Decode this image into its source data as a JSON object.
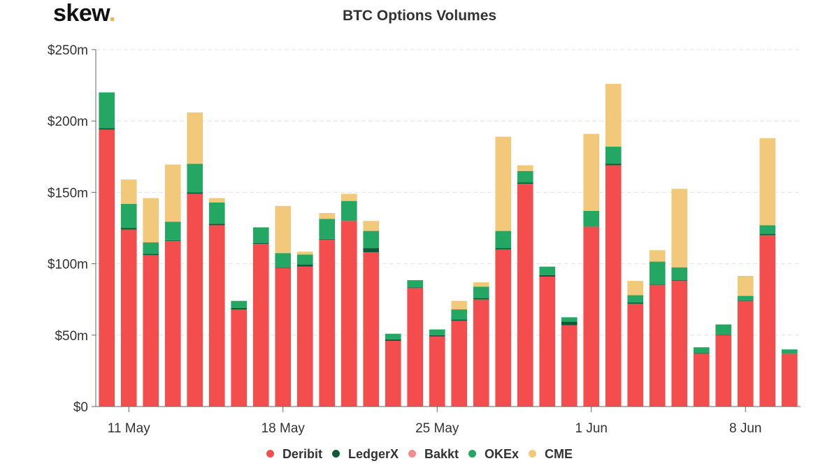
{
  "logo": {
    "text": "skew",
    "dot": "."
  },
  "chart_data": {
    "type": "bar",
    "stacked": true,
    "title": "BTC Options Volumes",
    "xlabel": "",
    "ylabel": "",
    "ylim": [
      0,
      250
    ],
    "y_ticks": [
      {
        "value": 0,
        "label": "$0"
      },
      {
        "value": 50,
        "label": "$50m"
      },
      {
        "value": 100,
        "label": "$100m"
      },
      {
        "value": 150,
        "label": "$150m"
      },
      {
        "value": 200,
        "label": "$200m"
      },
      {
        "value": 250,
        "label": "$250m"
      }
    ],
    "x_ticks": [
      {
        "index": 1,
        "label": "11 May"
      },
      {
        "index": 8,
        "label": "18 May"
      },
      {
        "index": 15,
        "label": "25 May"
      },
      {
        "index": 22,
        "label": "1 Jun"
      },
      {
        "index": 29,
        "label": "8 Jun"
      }
    ],
    "categories": [
      "10 May",
      "11 May",
      "12 May",
      "13 May",
      "14 May",
      "15 May",
      "16 May",
      "17 May",
      "18 May",
      "19 May",
      "20 May",
      "21 May",
      "22 May",
      "23 May",
      "24 May",
      "25 May",
      "26 May",
      "27 May",
      "28 May",
      "29 May",
      "30 May",
      "31 May",
      "1 Jun",
      "2 Jun",
      "3 Jun",
      "4 Jun",
      "5 Jun",
      "6 Jun",
      "7 Jun",
      "8 Jun",
      "9 Jun",
      "10 Jun"
    ],
    "grid": "horizontal dashed",
    "legend_position": "bottom-center",
    "series": [
      {
        "name": "Deribit",
        "color": "#f44d4d",
        "values": [
          194,
          124,
          106,
          116,
          149,
          127,
          68,
          114,
          97,
          98,
          117,
          130,
          108,
          46,
          83,
          49,
          60,
          75,
          110,
          156,
          91,
          57,
          126,
          169,
          72,
          85,
          88,
          37,
          50,
          74,
          120,
          37
        ]
      },
      {
        "name": "LedgerX",
        "color": "#0e5a38",
        "values": [
          1,
          1,
          1,
          0.5,
          1,
          1,
          1,
          0.5,
          0.5,
          1.5,
          0.5,
          0,
          3,
          1,
          0.5,
          1,
          1,
          1,
          1,
          1,
          1,
          2.5,
          0,
          1,
          1,
          0.5,
          0.5,
          0.5,
          0.5,
          0.5,
          1,
          0
        ]
      },
      {
        "name": "Bakkt",
        "color": "#f28c8c",
        "values": [
          0,
          0,
          0,
          0,
          0,
          0,
          0,
          0,
          0,
          0,
          0,
          0,
          0,
          0,
          0,
          0,
          0,
          0,
          0,
          0,
          0,
          0,
          0,
          0,
          0,
          0,
          0,
          0,
          0,
          0,
          0,
          0
        ]
      },
      {
        "name": "OKEx",
        "color": "#23a762",
        "values": [
          25,
          17,
          8,
          13,
          20,
          15,
          5,
          11,
          10,
          7,
          14,
          14,
          12,
          4,
          5,
          4,
          7,
          8,
          12,
          8,
          6,
          3,
          11,
          12,
          5,
          16,
          9,
          4,
          7,
          3,
          6,
          3
        ]
      },
      {
        "name": "CME",
        "color": "#f2c97b",
        "values": [
          0,
          17,
          31,
          40,
          36,
          3,
          0,
          0,
          33,
          2,
          4,
          5,
          7,
          0,
          0,
          0,
          6,
          3,
          66,
          4,
          0,
          0,
          54,
          44,
          10,
          8,
          55,
          0,
          0,
          14,
          61,
          0
        ]
      }
    ]
  }
}
